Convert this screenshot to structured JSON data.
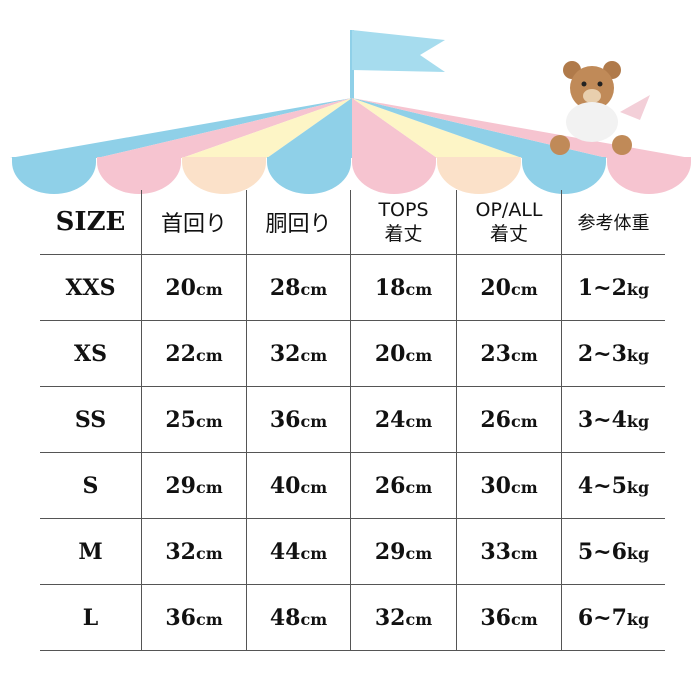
{
  "colors": {
    "blue": "#8fd0e8",
    "pink": "#f6c4d0",
    "peach": "#fbe1c9",
    "yellow": "#fdf5c6",
    "border": "#555555"
  },
  "header": {
    "size": "SIZE",
    "neck": "首回り",
    "chest": "胴回り",
    "tops_1": "TOPS",
    "tops_2": "着丈",
    "opall_1": "OP/ALL",
    "opall_2": "着丈",
    "weight": "参考体重"
  },
  "rows": [
    {
      "size": "XXS",
      "neck": "20",
      "chest": "28",
      "tops": "18",
      "opall": "20",
      "weight_num": "1~2",
      "weight_unit": "kg"
    },
    {
      "size": "XS",
      "neck": "22",
      "chest": "32",
      "tops": "20",
      "opall": "23",
      "weight_num": "2~3",
      "weight_unit": "kg"
    },
    {
      "size": "SS",
      "neck": "25",
      "chest": "36",
      "tops": "24",
      "opall": "26",
      "weight_num": "3~4",
      "weight_unit": "kg"
    },
    {
      "size": "S",
      "neck": "29",
      "chest": "40",
      "tops": "26",
      "opall": "30",
      "weight_num": "4~5",
      "weight_unit": "kg"
    },
    {
      "size": "M",
      "neck": "32",
      "chest": "44",
      "tops": "29",
      "opall": "33",
      "weight_num": "5~6",
      "weight_unit": "kg"
    },
    {
      "size": "L",
      "neck": "36",
      "chest": "48",
      "tops": "32",
      "opall": "36",
      "weight_num": "6~7",
      "weight_unit": "kg"
    }
  ],
  "unit": "cm"
}
